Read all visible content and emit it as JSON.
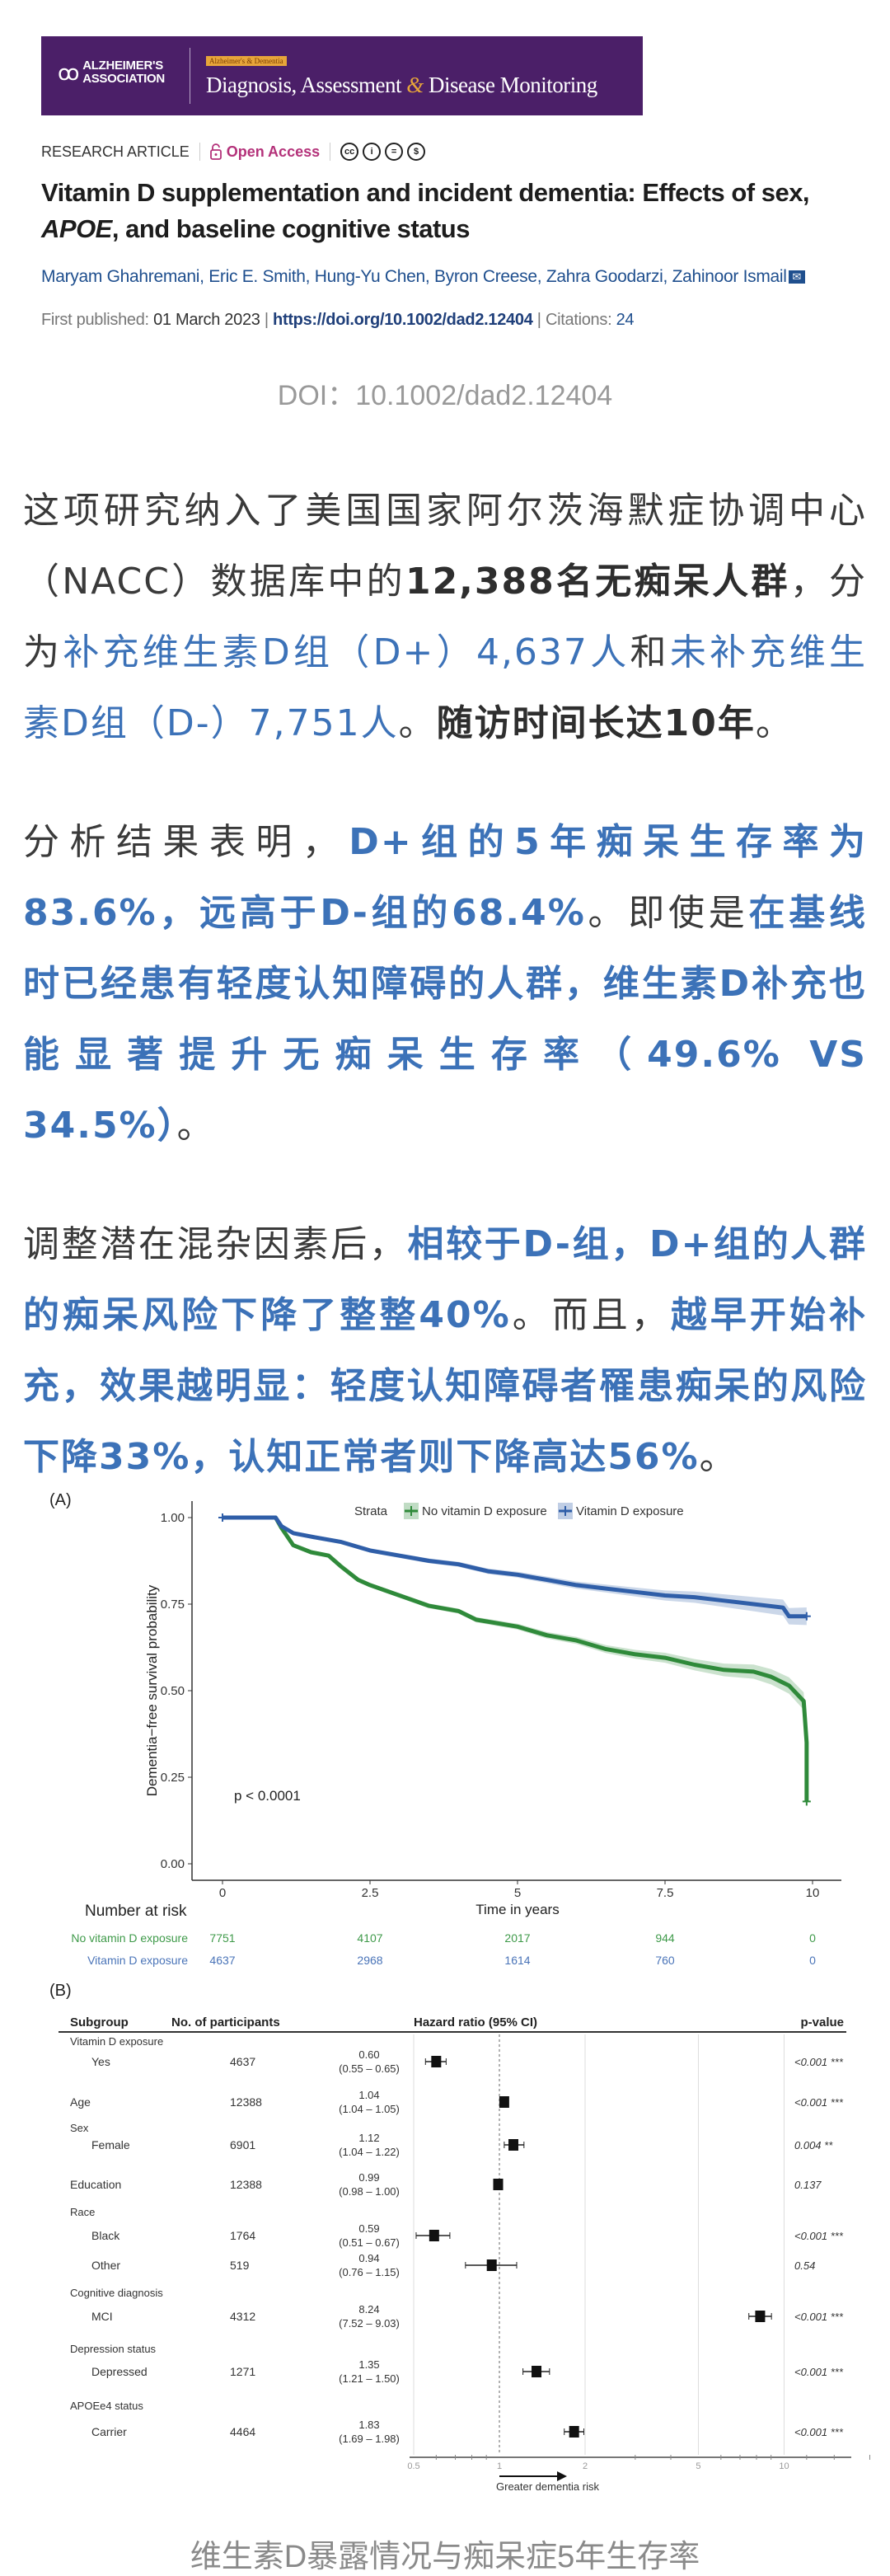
{
  "header": {
    "association_logo": "ALZHEIMER'S ASSOCIATION",
    "journal_tag": "Alzheimer's & Dementia",
    "journal_name_part1": "Diagnosis, Assessment ",
    "journal_amp": "&",
    "journal_name_part2": " Disease Monitoring",
    "brand_color": "#4b1f68"
  },
  "article": {
    "type": "RESEARCH ARTICLE",
    "open_access": "Open Access",
    "license_icons": [
      "cc-icon",
      "by-icon",
      "nd-icon",
      "nc-icon"
    ],
    "title_part1": "Vitamin D supplementation and incident dementia: Effects of sex, ",
    "title_italic": "APOE",
    "title_part2": ", and baseline cognitive status",
    "authors": "Maryam Ghahremani, Eric E. Smith, Hung-Yu Chen, Byron Creese, Zahra Goodarzi, Zahinoor Ismail",
    "first_published_label": "First published: ",
    "first_published": "01 March 2023",
    "doi_link": "https://doi.org/10.1002/dad2.12404",
    "citations_label": "Citations: ",
    "citations": "24",
    "sep": "|"
  },
  "doi_caption": "DOI：10.1002/dad2.12404",
  "paragraphs": [
    [
      {
        "t": "这项研究纳入了美国国家阿尔茨海默症协调中心（NACC）数据库中的",
        "s": "normal"
      },
      {
        "t": "12,388名无痴呆人群",
        "s": "bold"
      },
      {
        "t": "，分为",
        "s": "normal"
      },
      {
        "t": "补充维生素D组（D+）4,637人",
        "s": "blue"
      },
      {
        "t": "和",
        "s": "normal"
      },
      {
        "t": "未补充维生素D组（D-）7,751人",
        "s": "blue"
      },
      {
        "t": "。",
        "s": "normal"
      },
      {
        "t": "随访时间长达10年",
        "s": "bold"
      },
      {
        "t": "。",
        "s": "normal"
      }
    ],
    [
      {
        "t": "分析结果表明，",
        "s": "normal"
      },
      {
        "t": "D+组的5年痴呆生存率为83.6%，远高于D-组的68.4%",
        "s": "bluebold"
      },
      {
        "t": "。即使是",
        "s": "normal"
      },
      {
        "t": "在基线时已经患有轻度认知障碍的人群，维生素D补充也能显著提升无痴呆生存率（49.6% VS 34.5%）",
        "s": "bluebold"
      },
      {
        "t": "。",
        "s": "normal"
      }
    ],
    [
      {
        "t": "调整潜在混杂因素后，",
        "s": "normal"
      },
      {
        "t": "相较于D-组，D+组的人群的痴呆风险下降了整整40%",
        "s": "bluebold"
      },
      {
        "t": "。而且，",
        "s": "normal"
      },
      {
        "t": "越早开始补充，效果越明显：轻度认知障碍者罹患痴呆的风险下降33%，认知正常者则下降高达56%",
        "s": "bluebold"
      },
      {
        "t": "。",
        "s": "normal"
      }
    ]
  ],
  "colors": {
    "text": "#3a3a3a",
    "highlight_blue": "#3c72b8",
    "green_series": "#2f8a3a",
    "blue_series": "#2f5ea8"
  },
  "chart_data": [
    {
      "type": "line",
      "panel_label": "(A)",
      "xlabel": "Time in years",
      "ylabel": "Dementia−free survival probability",
      "xlim": [
        0,
        10
      ],
      "ylim": [
        0,
        1
      ],
      "x_ticks": [
        "0",
        "2.5",
        "5",
        "7.5",
        "10"
      ],
      "y_ticks": [
        "0.00",
        "0.25",
        "0.50",
        "0.75",
        "1.00"
      ],
      "grid": false,
      "legend_title": "Strata",
      "legend_position": "top",
      "annotation": "p < 0.0001",
      "series": [
        {
          "name": "No vitamin D exposure",
          "color": "#2f8a3a",
          "x": [
            0,
            0.9,
            1.0,
            1.2,
            1.5,
            1.8,
            2.0,
            2.3,
            2.5,
            3.0,
            3.5,
            4.0,
            4.3,
            5.0,
            5.5,
            6.0,
            6.5,
            7.0,
            7.5,
            8.0,
            8.5,
            9.0,
            9.3,
            9.6,
            9.85,
            9.9,
            9.9
          ],
          "y": [
            1.0,
            1.0,
            0.97,
            0.92,
            0.9,
            0.89,
            0.86,
            0.82,
            0.805,
            0.775,
            0.745,
            0.73,
            0.705,
            0.685,
            0.66,
            0.645,
            0.62,
            0.605,
            0.595,
            0.575,
            0.56,
            0.555,
            0.54,
            0.515,
            0.47,
            0.35,
            0.18
          ]
        },
        {
          "name": "Vitamin D exposure",
          "color": "#2f5ea8",
          "x": [
            0,
            0.9,
            1.0,
            1.2,
            1.5,
            2.0,
            2.5,
            3.0,
            3.5,
            4.0,
            4.5,
            5.0,
            5.5,
            6.0,
            6.5,
            7.0,
            7.5,
            8.0,
            8.5,
            9.0,
            9.5,
            9.6,
            9.9
          ],
          "y": [
            1.0,
            1.0,
            0.975,
            0.955,
            0.945,
            0.93,
            0.905,
            0.89,
            0.875,
            0.865,
            0.845,
            0.835,
            0.82,
            0.805,
            0.795,
            0.785,
            0.775,
            0.77,
            0.76,
            0.75,
            0.74,
            0.715,
            0.715
          ]
        }
      ],
      "risk_table": {
        "title": "Number at risk",
        "rows": [
          {
            "name": "No vitamin D exposure",
            "color": "#3f9a4a",
            "values": [
              "7751",
              "4107",
              "2017",
              "944",
              "0"
            ]
          },
          {
            "name": "Vitamin D exposure",
            "color": "#4a74b8",
            "values": [
              "4637",
              "2968",
              "1614",
              "760",
              "0"
            ]
          }
        ]
      }
    },
    {
      "type": "forest",
      "panel_label": "(B)",
      "columns": [
        "Subgroup",
        "No. of participants",
        "Hazard ratio (95% CI)",
        "p-value"
      ],
      "x_scale": "log",
      "x_ticks": [
        "0.5",
        "1",
        "2",
        "5",
        "10"
      ],
      "reference_line": 1,
      "x_annotation": "Greater dementia risk",
      "rows": [
        {
          "group": "Vitamin D exposure"
        },
        {
          "label": "Yes",
          "indent": true,
          "n": "4637",
          "hr": 0.6,
          "lo": 0.55,
          "hi": 0.65,
          "hr_text": "0.60",
          "ci_text": "(0.55 – 0.65)",
          "p": "<0.001 ***"
        },
        {
          "label": "Age",
          "indent": false,
          "n": "12388",
          "hr": 1.04,
          "lo": 1.04,
          "hi": 1.05,
          "hr_text": "1.04",
          "ci_text": "(1.04 – 1.05)",
          "p": "<0.001 ***"
        },
        {
          "group": "Sex"
        },
        {
          "label": "Female",
          "indent": true,
          "n": "6901",
          "hr": 1.12,
          "lo": 1.04,
          "hi": 1.22,
          "hr_text": "1.12",
          "ci_text": "(1.04 – 1.22)",
          "p": "0.004 **"
        },
        {
          "label": "Education",
          "indent": false,
          "n": "12388",
          "hr": 0.99,
          "lo": 0.98,
          "hi": 1.0,
          "hr_text": "0.99",
          "ci_text": "(0.98 – 1.00)",
          "p": "0.137"
        },
        {
          "group": "Race"
        },
        {
          "label": "Black",
          "indent": true,
          "n": "1764",
          "hr": 0.59,
          "lo": 0.51,
          "hi": 0.67,
          "hr_text": "0.59",
          "ci_text": "(0.51 – 0.67)",
          "p": "<0.001 ***"
        },
        {
          "label": "Other",
          "indent": true,
          "n": "519",
          "hr": 0.94,
          "lo": 0.76,
          "hi": 1.15,
          "hr_text": "0.94",
          "ci_text": "(0.76 – 1.15)",
          "p": "0.54"
        },
        {
          "group": "Cognitive diagnosis"
        },
        {
          "label": "MCI",
          "indent": true,
          "n": "4312",
          "hr": 8.24,
          "lo": 7.52,
          "hi": 9.03,
          "hr_text": "8.24",
          "ci_text": "(7.52 – 9.03)",
          "p": "<0.001 ***"
        },
        {
          "group": "Depression status"
        },
        {
          "label": "Depressed",
          "indent": true,
          "n": "1271",
          "hr": 1.35,
          "lo": 1.21,
          "hi": 1.5,
          "hr_text": "1.35",
          "ci_text": "(1.21 – 1.50)",
          "p": "<0.001 ***"
        },
        {
          "group": "APOEe4 status"
        },
        {
          "label": "Carrier",
          "indent": true,
          "n": "4464",
          "hr": 1.83,
          "lo": 1.69,
          "hi": 1.98,
          "hr_text": "1.83",
          "ci_text": "(1.69 – 1.98)",
          "p": "<0.001 ***"
        }
      ]
    }
  ],
  "figure_caption": "维生素D暴露情况与痴呆症5年生存率"
}
